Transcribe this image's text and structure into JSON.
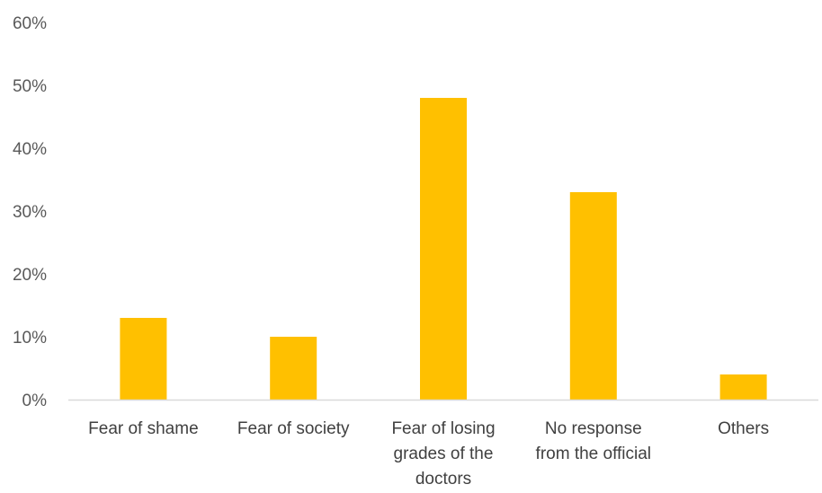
{
  "chart_data": {
    "type": "bar",
    "title": "",
    "xlabel": "",
    "ylabel": "",
    "categories": [
      [
        "Fear of shame"
      ],
      [
        "Fear of society"
      ],
      [
        "Fear of losing",
        "grades of the",
        "doctors"
      ],
      [
        "No response",
        "from the official"
      ],
      [
        "Others"
      ]
    ],
    "values": [
      13,
      10,
      48,
      33,
      4
    ],
    "ylim": [
      0,
      60
    ],
    "yticks": [
      0,
      10,
      20,
      30,
      40,
      50,
      60
    ],
    "ytick_labels": [
      "0%",
      "10%",
      "20%",
      "30%",
      "40%",
      "50%",
      "60%"
    ],
    "grid": false,
    "legend": "none",
    "bar_color": "#FFC000",
    "axis_color": "#D9D9D9"
  }
}
